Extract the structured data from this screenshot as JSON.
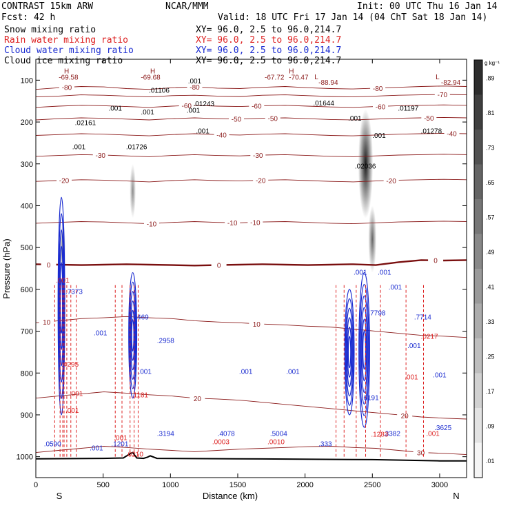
{
  "header": {
    "model": "CONTRAST 15km ARW",
    "center": "NCAR/MMM",
    "init": "Init: 00 UTC Thu 16 Jan 14",
    "fcst": "Fcst:   42 h",
    "valid": "Valid: 18 UTC Fri 17 Jan 14 (04 ChT Sat 18 Jan 14)"
  },
  "fields": [
    {
      "name": "Snow mixing ratio",
      "xy": "XY=  96.0,  2.5 to  96.0,214.7",
      "color": "#000000"
    },
    {
      "name": "Rain water mixing ratio",
      "xy": "XY=  96.0,  2.5 to  96.0,214.7",
      "color": "#dd2222"
    },
    {
      "name": "Cloud water mixing ratio",
      "xy": "XY=  96.0,  2.5 to  96.0,214.7",
      "color": "#1a2bd0"
    },
    {
      "name": "Cloud ice mixing ratio",
      "xy": "XY=  96.0,  2.5 to  96.0,214.7",
      "color": "#000000"
    }
  ],
  "colors": {
    "temperature": "#8b1a1a",
    "freezing": "#7a0f0f",
    "rain": "#dd2222",
    "cloudwater": "#1a2bd0",
    "snow": "#000000"
  },
  "chart_data": {
    "type": "cross-section",
    "title": "CONTRAST 15km ARW",
    "xlabel": "Distance (km)",
    "ylabel": "Pressure (hPa)",
    "xlim": [
      0,
      3200
    ],
    "ylim": [
      1050,
      50
    ],
    "x_ticks": [
      "0",
      "500",
      "1000",
      "1500",
      "2000",
      "2500",
      "3000"
    ],
    "y_ticks": [
      "100",
      "200",
      "300",
      "400",
      "500",
      "600",
      "700",
      "800",
      "900",
      "1000"
    ],
    "x_end_labels": {
      "left": "S",
      "right": "N"
    },
    "colorbar": {
      "unit": "g kg⁻¹",
      "ticks": [
        ".89",
        ".81",
        ".73",
        ".65",
        ".57",
        ".49",
        ".41",
        ".33",
        ".25",
        ".17",
        ".09",
        ".01"
      ]
    },
    "temperature_contours": [
      {
        "label": "-80",
        "p": [
          122,
          118,
          115,
          116,
          120,
          122,
          118,
          116,
          119,
          120,
          117,
          115,
          118,
          120,
          121,
          119,
          117,
          115,
          114,
          115
        ],
        "labels_at": [
          {
            "x": 230,
            "t": "-80"
          },
          {
            "x": 1180,
            "t": "-80"
          },
          {
            "x": 2540,
            "t": "-80"
          }
        ]
      },
      {
        "label": "-70",
        "p": [
          140,
          138,
          135,
          136,
          138,
          140,
          137,
          136,
          138,
          139,
          136,
          135,
          137,
          139,
          140,
          138,
          136,
          135,
          134,
          135
        ],
        "labels_at": [
          {
            "x": 3020,
            "t": "-70"
          }
        ]
      },
      {
        "label": "-60",
        "p": [
          165,
          162,
          160,
          161,
          163,
          165,
          162,
          160,
          162,
          163,
          161,
          160,
          162,
          164,
          165,
          163,
          161,
          160,
          159,
          160
        ],
        "labels_at": [
          {
            "x": 1120,
            "t": "-60"
          },
          {
            "x": 1640,
            "t": "-60"
          },
          {
            "x": 2560,
            "t": "-60"
          }
        ]
      },
      {
        "label": "-50",
        "p": [
          195,
          192,
          190,
          191,
          193,
          195,
          192,
          190,
          192,
          193,
          191,
          190,
          192,
          194,
          195,
          193,
          191,
          190,
          189,
          190
        ],
        "labels_at": [
          {
            "x": 1490,
            "t": "-50"
          },
          {
            "x": 1760,
            "t": "-50"
          },
          {
            "x": 2920,
            "t": "-50"
          }
        ]
      },
      {
        "label": "-40",
        "p": [
          232,
          230,
          228,
          229,
          231,
          233,
          230,
          228,
          230,
          231,
          229,
          228,
          230,
          232,
          233,
          231,
          229,
          228,
          227,
          228
        ],
        "labels_at": [
          {
            "x": 1380,
            "t": "-40"
          },
          {
            "x": 3090,
            "t": "-40"
          }
        ]
      },
      {
        "label": "-30",
        "p": [
          282,
          280,
          278,
          279,
          281,
          283,
          280,
          278,
          280,
          281,
          279,
          278,
          280,
          282,
          283,
          281,
          279,
          278,
          277,
          278
        ],
        "labels_at": [
          {
            "x": 480,
            "t": "-30"
          },
          {
            "x": 1650,
            "t": "-30"
          }
        ]
      },
      {
        "label": "-20",
        "p": [
          342,
          340,
          338,
          339,
          341,
          343,
          340,
          338,
          340,
          341,
          339,
          338,
          340,
          342,
          343,
          341,
          339,
          338,
          337,
          338
        ],
        "labels_at": [
          {
            "x": 210,
            "t": "-20"
          },
          {
            "x": 1670,
            "t": "-20"
          },
          {
            "x": 2640,
            "t": "-20"
          }
        ]
      },
      {
        "label": "-10",
        "p": [
          442,
          440,
          438,
          439,
          441,
          443,
          440,
          438,
          440,
          441,
          439,
          438,
          440,
          442,
          443,
          441,
          439,
          438,
          437,
          438
        ],
        "labels_at": [
          {
            "x": 860,
            "t": "-10"
          },
          {
            "x": 1460,
            "t": "-10"
          },
          {
            "x": 1630,
            "t": "-10"
          }
        ]
      },
      {
        "label": "0",
        "p": [
          540,
          541,
          542,
          541,
          540,
          541,
          542,
          543,
          542,
          541,
          540,
          541,
          542,
          541,
          540,
          542,
          535,
          530,
          531,
          530
        ],
        "labels_at": [
          {
            "x": 95,
            "t": "0"
          },
          {
            "x": 1360,
            "t": "0"
          },
          {
            "x": 2970,
            "t": "0"
          }
        ],
        "freezing": true
      },
      {
        "label": "10",
        "p": [
          680,
          675,
          670,
          668,
          665,
          668,
          670,
          675,
          678,
          680,
          683,
          685,
          688,
          690,
          695,
          700,
          705,
          710,
          712,
          715
        ],
        "labels_at": [
          {
            "x": 1640,
            "t": "10"
          },
          {
            "x": 80,
            "t": "10"
          }
        ]
      },
      {
        "label": "20",
        "p": [
          860,
          855,
          850,
          845,
          848,
          852,
          855,
          860,
          862,
          865,
          870,
          875,
          880,
          885,
          890,
          895,
          900,
          905,
          908,
          910
        ],
        "labels_at": [
          {
            "x": 1200,
            "t": "20"
          },
          {
            "x": 2740,
            "t": "20"
          }
        ]
      },
      {
        "label": "30",
        "p": [
          990,
          985,
          980,
          975,
          978,
          982,
          985,
          988,
          985,
          982,
          980,
          978,
          976,
          975,
          978,
          980,
          985,
          990,
          992,
          995
        ],
        "labels_at": [
          {
            "x": 2860,
            "t": "30"
          }
        ]
      }
    ],
    "labels_on_plot": [
      {
        "t": "-69.58",
        "x": 170,
        "p": 99,
        "c": "temperature"
      },
      {
        "t": "-69.68",
        "x": 780,
        "p": 99,
        "c": "temperature"
      },
      {
        "t": "-67.72",
        "x": 1700,
        "p": 99,
        "c": "temperature"
      },
      {
        "t": "-70.47",
        "x": 1880,
        "p": 99,
        "c": "temperature"
      },
      {
        "t": "-88.94",
        "x": 2100,
        "p": 111,
        "c": "temperature"
      },
      {
        "t": "-82.94",
        "x": 3010,
        "p": 111,
        "c": "temperature"
      },
      {
        "t": "H",
        "x": 210,
        "p": 84,
        "c": "temperature"
      },
      {
        "t": "H",
        "x": 850,
        "p": 84,
        "c": "temperature"
      },
      {
        "t": "H",
        "x": 1880,
        "p": 84,
        "c": "temperature"
      },
      {
        "t": "L",
        "x": 2070,
        "p": 98,
        "c": "temperature"
      },
      {
        "t": "L",
        "x": 2970,
        "p": 98,
        "c": "temperature"
      },
      {
        "t": ".001",
        "x": 1130,
        "p": 108,
        "c": "snow"
      },
      {
        "t": ".01106",
        "x": 840,
        "p": 130,
        "c": "snow"
      },
      {
        "t": ".01243",
        "x": 1170,
        "p": 162,
        "c": "snow"
      },
      {
        "t": ".01644",
        "x": 2060,
        "p": 160,
        "c": "snow"
      },
      {
        "t": ".01197",
        "x": 2690,
        "p": 173,
        "c": "snow"
      },
      {
        "t": ".001",
        "x": 540,
        "p": 173,
        "c": "snow"
      },
      {
        "t": ".001",
        "x": 780,
        "p": 182,
        "c": "snow"
      },
      {
        "t": ".001",
        "x": 1120,
        "p": 178,
        "c": "snow"
      },
      {
        "t": ".02161",
        "x": 290,
        "p": 207,
        "c": "snow"
      },
      {
        "t": ".001",
        "x": 2320,
        "p": 197,
        "c": "snow"
      },
      {
        "t": ".001",
        "x": 1190,
        "p": 227,
        "c": "snow"
      },
      {
        "t": ".01278",
        "x": 2860,
        "p": 227,
        "c": "snow"
      },
      {
        "t": ".001",
        "x": 2500,
        "p": 238,
        "c": "snow"
      },
      {
        "t": ".001",
        "x": 270,
        "p": 265,
        "c": "snow"
      },
      {
        "t": ".01726",
        "x": 670,
        "p": 265,
        "c": "snow"
      },
      {
        "t": ".02036",
        "x": 2370,
        "p": 311,
        "c": "snow"
      },
      {
        "t": ".7373",
        "x": 220,
        "p": 611,
        "c": "cloudwater"
      },
      {
        "t": ".8469",
        "x": 710,
        "p": 672,
        "c": "cloudwater"
      },
      {
        "t": ".2958",
        "x": 900,
        "p": 728,
        "c": "cloudwater"
      },
      {
        "t": ".7798",
        "x": 2470,
        "p": 662,
        "c": "cloudwater"
      },
      {
        "t": ".7714",
        "x": 2810,
        "p": 672,
        "c": "cloudwater"
      },
      {
        "t": ".6191",
        "x": 2420,
        "p": 865,
        "c": "cloudwater"
      },
      {
        "t": ".3194",
        "x": 900,
        "p": 950,
        "c": "cloudwater"
      },
      {
        "t": ".4078",
        "x": 1350,
        "p": 950,
        "c": "cloudwater"
      },
      {
        "t": ".5004",
        "x": 1740,
        "p": 950,
        "c": "cloudwater"
      },
      {
        "t": ".3382",
        "x": 2580,
        "p": 950,
        "c": "cloudwater"
      },
      {
        "t": ".3625",
        "x": 2960,
        "p": 936,
        "c": "cloudwater"
      },
      {
        "t": ".0590",
        "x": 60,
        "p": 975,
        "c": "cloudwater"
      },
      {
        "t": ".1201",
        "x": 560,
        "p": 975,
        "c": "cloudwater"
      },
      {
        "t": ".333",
        "x": 2100,
        "p": 975,
        "c": "cloudwater"
      },
      {
        "t": ".001",
        "x": 400,
        "p": 985,
        "c": "cloudwater"
      },
      {
        "t": ".001",
        "x": 1510,
        "p": 802,
        "c": "cloudwater"
      },
      {
        "t": ".001",
        "x": 1860,
        "p": 802,
        "c": "cloudwater"
      },
      {
        "t": ".001",
        "x": 2950,
        "p": 810,
        "c": "cloudwater"
      },
      {
        "t": ".001",
        "x": 430,
        "p": 710,
        "c": "cloudwater"
      },
      {
        "t": ".001",
        "x": 2760,
        "p": 740,
        "c": "cloudwater"
      },
      {
        "t": ".001",
        "x": 2620,
        "p": 600,
        "c": "cloudwater"
      },
      {
        "t": ".001",
        "x": 760,
        "p": 802,
        "c": "cloudwater"
      },
      {
        "t": ".001",
        "x": 2360,
        "p": 565,
        "c": "cloudwater"
      },
      {
        "t": ".001",
        "x": 2540,
        "p": 565,
        "c": "cloudwater"
      },
      {
        "t": ".001",
        "x": 150,
        "p": 584,
        "c": "rain"
      },
      {
        "t": ".4295",
        "x": 190,
        "p": 785,
        "c": "rain"
      },
      {
        "t": ".001",
        "x": 250,
        "p": 855,
        "c": "rain"
      },
      {
        "t": ".001",
        "x": 220,
        "p": 895,
        "c": "rain"
      },
      {
        "t": ".1181",
        "x": 710,
        "p": 858,
        "c": "rain"
      },
      {
        "t": ".001",
        "x": 580,
        "p": 960,
        "c": "rain"
      },
      {
        "t": ".0210",
        "x": 670,
        "p": 1000,
        "c": "rain"
      },
      {
        "t": ".0003",
        "x": 1310,
        "p": 970,
        "c": "rain"
      },
      {
        "t": ".0010",
        "x": 1720,
        "p": 970,
        "c": "rain"
      },
      {
        "t": ".1283",
        "x": 2490,
        "p": 952,
        "c": "rain"
      },
      {
        "t": ".0217",
        "x": 2860,
        "p": 718,
        "c": "rain"
      },
      {
        "t": ".001",
        "x": 2740,
        "p": 815,
        "c": "rain"
      },
      {
        "t": ".001",
        "x": 2900,
        "p": 950,
        "c": "rain"
      }
    ],
    "snow_plumes": [
      {
        "x": 200,
        "p1": 440,
        "p2": 570,
        "w": 40,
        "peak": 0.55
      },
      {
        "x": 720,
        "p1": 300,
        "p2": 430,
        "w": 45,
        "peak": 0.45
      },
      {
        "x": 2450,
        "p1": 170,
        "p2": 430,
        "w": 110,
        "peak": 0.9
      },
      {
        "x": 2500,
        "p1": 400,
        "p2": 560,
        "w": 60,
        "peak": 0.6
      }
    ],
    "rain_columns_x": [
      140,
      180,
      200,
      210,
      230,
      260,
      300,
      590,
      640,
      700,
      730,
      760,
      2230,
      2290,
      2380,
      2450,
      2560,
      2750,
      2880
    ],
    "cloudwater_columns": [
      {
        "x": 190,
        "p1": 380,
        "p2": 900,
        "w": 50
      },
      {
        "x": 720,
        "p1": 560,
        "p2": 860,
        "w": 60
      },
      {
        "x": 2330,
        "p1": 600,
        "p2": 900,
        "w": 70
      },
      {
        "x": 2440,
        "p1": 560,
        "p2": 930,
        "w": 80
      }
    ],
    "terrain_km": [
      0,
      500,
      650,
      700,
      720,
      750,
      800,
      830,
      850,
      900,
      1500,
      2500,
      3000,
      3200
    ],
    "terrain_hpa": [
      1005,
      1004,
      1003,
      993,
      990,
      1003,
      1004,
      1001,
      998,
      1004,
      1005,
      1007,
      1010,
      1010
    ]
  }
}
